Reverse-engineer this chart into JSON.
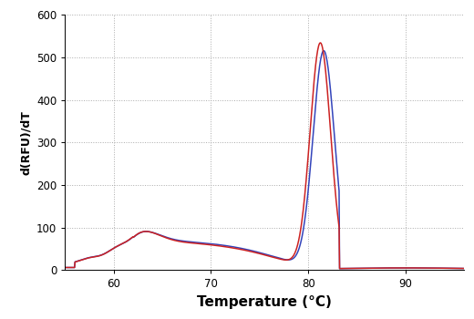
{
  "xlabel": "Temperature (°C)",
  "ylabel": "d(RFU)/dT",
  "xlim": [
    55,
    96
  ],
  "ylim": [
    0,
    600
  ],
  "xticks": [
    60,
    70,
    80,
    90
  ],
  "yticks": [
    0,
    100,
    200,
    300,
    400,
    500,
    600
  ],
  "grid_color": "#aaaaaa",
  "line_blue": "#3344bb",
  "line_red": "#cc2222",
  "line_width": 1.1,
  "bg_color": "#ffffff",
  "xlabel_fontsize": 11,
  "ylabel_fontsize": 9,
  "tick_fontsize": 8.5
}
